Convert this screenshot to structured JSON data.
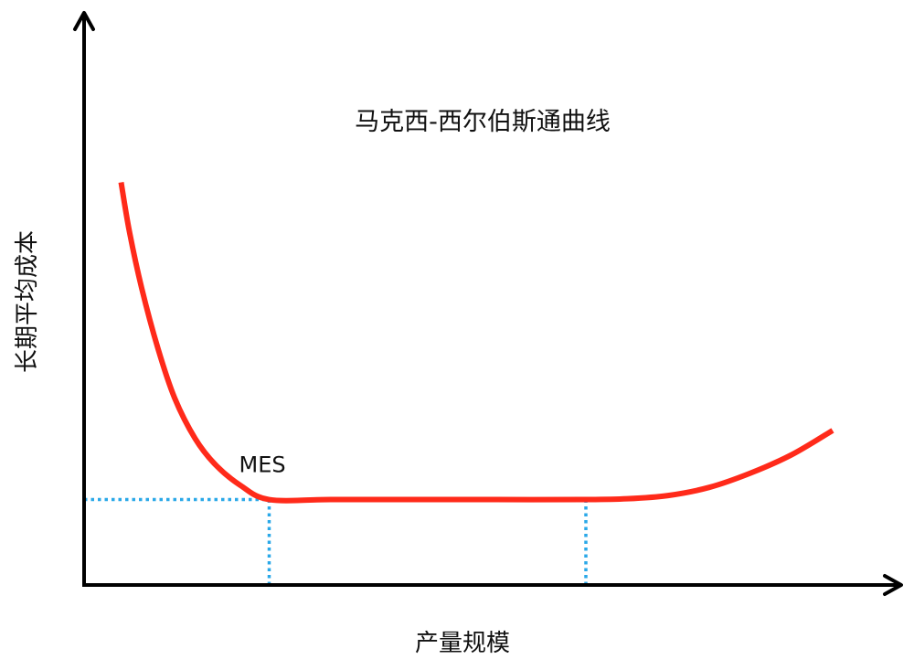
{
  "chart_data": {
    "type": "line",
    "title": "马克西-西尔伯斯通曲线",
    "xlabel": "产量规模",
    "ylabel": "长期平均成本",
    "grid": false,
    "legend": "none",
    "xlim": [
      0,
      10
    ],
    "ylim": [
      0,
      10
    ],
    "series": [
      {
        "color": "#ff2a1a",
        "points": [
          [
            0.45,
            9.9
          ],
          [
            0.55,
            8.7
          ],
          [
            0.7,
            7.3
          ],
          [
            0.9,
            5.8
          ],
          [
            1.1,
            4.6
          ],
          [
            1.35,
            3.6
          ],
          [
            1.6,
            2.95
          ],
          [
            1.9,
            2.45
          ],
          [
            2.25,
            2.1
          ],
          [
            3.0,
            2.1
          ],
          [
            4.0,
            2.1
          ],
          [
            5.0,
            2.1
          ],
          [
            6.1,
            2.1
          ],
          [
            6.6,
            2.12
          ],
          [
            7.1,
            2.2
          ],
          [
            7.6,
            2.4
          ],
          [
            8.1,
            2.75
          ],
          [
            8.6,
            3.2
          ],
          [
            9.1,
            3.8
          ]
        ]
      }
    ],
    "annotations": [
      {
        "text": "MES",
        "x": 2.25,
        "y": 2.1
      }
    ],
    "reference_lines": [
      {
        "orientation": "horizontal",
        "y": 2.1,
        "x_from": 0,
        "x_to": 2.25,
        "style": "dotted",
        "color": "#2aa8e8"
      },
      {
        "orientation": "vertical",
        "x": 2.25,
        "y_from": 0,
        "y_to": 2.1,
        "style": "dotted",
        "color": "#2aa8e8"
      },
      {
        "orientation": "vertical",
        "x": 6.1,
        "y_from": 0,
        "y_to": 2.1,
        "style": "dotted",
        "color": "#2aa8e8"
      }
    ],
    "axis_color": "#000000"
  }
}
